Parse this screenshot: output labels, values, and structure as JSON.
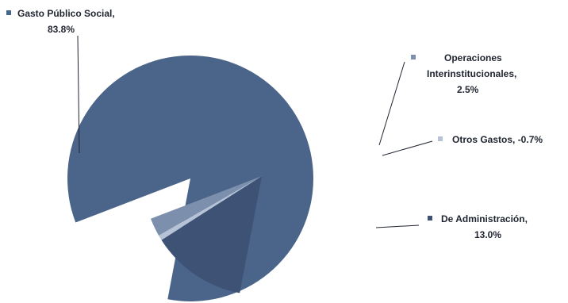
{
  "chart_data": {
    "type": "pie",
    "title": "",
    "slices": [
      {
        "label": "Gasto Público Social,",
        "value_label": "83.8%",
        "value": 83.8,
        "color": "#4b6489"
      },
      {
        "label": "De Administración,",
        "value_label": "13.0%",
        "value": 13.0,
        "color": "#3d5274"
      },
      {
        "label": "Otros Gastos, -0.7%",
        "value_label": "",
        "value": -0.7,
        "color": "#b6c3d6"
      },
      {
        "label": "Operaciones Interinstitucionales,",
        "value_label": "2.5%",
        "value": 2.5,
        "color": "#7c90ad"
      }
    ],
    "legend": "inline-callouts"
  }
}
